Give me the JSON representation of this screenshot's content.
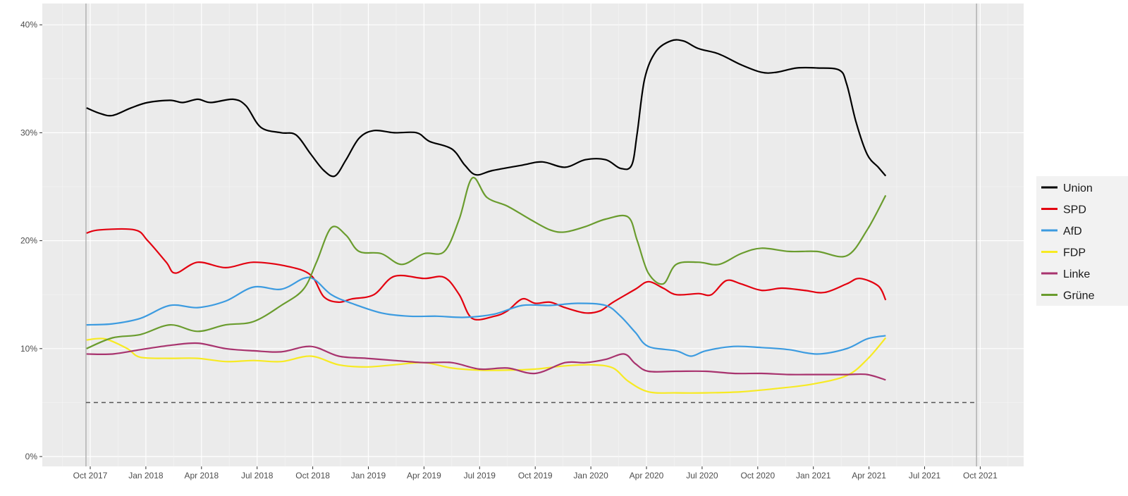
{
  "chart_data": {
    "type": "line",
    "title": "",
    "xlabel": "",
    "ylabel": "",
    "x_unit": "months since Oct 2017",
    "xlim": [
      -1.1,
      49.5
    ],
    "ylim": [
      0,
      40
    ],
    "y_ticks": [
      0,
      10,
      20,
      30,
      40
    ],
    "y_tick_labels": [
      "0%",
      "10%",
      "20%",
      "30%",
      "40%"
    ],
    "x_ticks": [
      0,
      3,
      6,
      9,
      12,
      15,
      18,
      21,
      24,
      27,
      30,
      33,
      36,
      39,
      42,
      45,
      48
    ],
    "x_tick_labels": [
      "Oct 2017",
      "Jan 2018",
      "Apr 2018",
      "Jul 2018",
      "Oct 2018",
      "Jan 2019",
      "Apr 2019",
      "Jul 2019",
      "Oct 2019",
      "Jan 2020",
      "Apr 2020",
      "Jul 2020",
      "Oct 2020",
      "Jan 2021",
      "Apr 2021",
      "Jul 2021",
      "Oct 2021"
    ],
    "grid": true,
    "election_lines": [
      -0.23,
      47.8
    ],
    "threshold_line": 5,
    "legend_position": "right",
    "series": [
      {
        "name": "Union",
        "color": "#000000",
        "points": [
          [
            -0.2,
            32.3
          ],
          [
            0.5,
            31.8
          ],
          [
            1.2,
            31.6
          ],
          [
            2.2,
            32.3
          ],
          [
            3.1,
            32.8
          ],
          [
            4.3,
            33
          ],
          [
            5,
            32.8
          ],
          [
            5.8,
            33.1
          ],
          [
            6.5,
            32.8
          ],
          [
            7.7,
            33.1
          ],
          [
            8.4,
            32.5
          ],
          [
            9.2,
            30.5
          ],
          [
            10.3,
            30
          ],
          [
            11.1,
            29.8
          ],
          [
            11.9,
            28
          ],
          [
            12.6,
            26.5
          ],
          [
            13.2,
            26
          ],
          [
            13.8,
            27.5
          ],
          [
            14.5,
            29.5
          ],
          [
            15.3,
            30.2
          ],
          [
            16.4,
            30
          ],
          [
            17.6,
            30
          ],
          [
            18.3,
            29.2
          ],
          [
            19.5,
            28.5
          ],
          [
            20.2,
            27
          ],
          [
            20.8,
            26.1
          ],
          [
            21.7,
            26.5
          ],
          [
            23.3,
            27
          ],
          [
            24.4,
            27.3
          ],
          [
            25.6,
            26.8
          ],
          [
            26.7,
            27.5
          ],
          [
            27.8,
            27.5
          ],
          [
            28.6,
            26.7
          ],
          [
            29.2,
            27
          ],
          [
            29.5,
            30
          ],
          [
            29.9,
            35
          ],
          [
            30.5,
            37.5
          ],
          [
            31.3,
            38.5
          ],
          [
            32,
            38.5
          ],
          [
            32.8,
            37.8
          ],
          [
            33.9,
            37.3
          ],
          [
            35.1,
            36.3
          ],
          [
            36.2,
            35.6
          ],
          [
            37,
            35.6
          ],
          [
            38.1,
            36
          ],
          [
            39.2,
            36
          ],
          [
            40.4,
            35.8
          ],
          [
            40.8,
            34.5
          ],
          [
            41.3,
            31
          ],
          [
            41.9,
            28
          ],
          [
            42.5,
            26.8
          ],
          [
            42.9,
            26
          ]
        ]
      },
      {
        "name": "SPD",
        "color": "#e3000f",
        "points": [
          [
            -0.2,
            20.7
          ],
          [
            0.5,
            21
          ],
          [
            2.4,
            21
          ],
          [
            3.1,
            20
          ],
          [
            4.1,
            18
          ],
          [
            4.6,
            17
          ],
          [
            5.8,
            18
          ],
          [
            7.3,
            17.5
          ],
          [
            8.8,
            18
          ],
          [
            10.7,
            17.6
          ],
          [
            11.9,
            16.8
          ],
          [
            12.6,
            14.8
          ],
          [
            13.4,
            14.3
          ],
          [
            14.1,
            14.6
          ],
          [
            15.3,
            15
          ],
          [
            16.4,
            16.7
          ],
          [
            18,
            16.5
          ],
          [
            19.1,
            16.6
          ],
          [
            19.9,
            15
          ],
          [
            20.6,
            12.8
          ],
          [
            21.8,
            13
          ],
          [
            22.5,
            13.5
          ],
          [
            23.3,
            14.6
          ],
          [
            24,
            14.2
          ],
          [
            24.8,
            14.3
          ],
          [
            25.6,
            13.8
          ],
          [
            26.7,
            13.3
          ],
          [
            27.5,
            13.5
          ],
          [
            28.2,
            14.3
          ],
          [
            29.4,
            15.5
          ],
          [
            30.1,
            16.2
          ],
          [
            30.9,
            15.6
          ],
          [
            31.6,
            15
          ],
          [
            32.8,
            15.1
          ],
          [
            33.5,
            15
          ],
          [
            34.3,
            16.3
          ],
          [
            35.1,
            16
          ],
          [
            36.2,
            15.4
          ],
          [
            37.3,
            15.6
          ],
          [
            38.5,
            15.4
          ],
          [
            39.6,
            15.2
          ],
          [
            40.8,
            16
          ],
          [
            41.5,
            16.5
          ],
          [
            42.5,
            15.8
          ],
          [
            42.9,
            14.5
          ]
        ]
      },
      {
        "name": "AfD",
        "color": "#3c9be0",
        "points": [
          [
            -0.2,
            12.2
          ],
          [
            1.2,
            12.3
          ],
          [
            2.7,
            12.8
          ],
          [
            4.3,
            14
          ],
          [
            5.8,
            13.8
          ],
          [
            7.3,
            14.4
          ],
          [
            8.8,
            15.7
          ],
          [
            10.3,
            15.5
          ],
          [
            11.5,
            16.5
          ],
          [
            12.1,
            16.4
          ],
          [
            13,
            15
          ],
          [
            14.1,
            14.2
          ],
          [
            15.7,
            13.3
          ],
          [
            17.2,
            13
          ],
          [
            18.7,
            13
          ],
          [
            20.2,
            12.9
          ],
          [
            21.8,
            13.2
          ],
          [
            23.3,
            14
          ],
          [
            24.8,
            14
          ],
          [
            26.3,
            14.2
          ],
          [
            27.8,
            14
          ],
          [
            28.6,
            13
          ],
          [
            29.4,
            11.5
          ],
          [
            30.1,
            10.2
          ],
          [
            31.6,
            9.8
          ],
          [
            32.4,
            9.3
          ],
          [
            33.2,
            9.8
          ],
          [
            34.7,
            10.2
          ],
          [
            36.2,
            10.1
          ],
          [
            37.7,
            9.9
          ],
          [
            39.2,
            9.5
          ],
          [
            40.8,
            10
          ],
          [
            41.9,
            10.9
          ],
          [
            42.9,
            11.2
          ]
        ]
      },
      {
        "name": "FDP",
        "color": "#f7ea23",
        "points": [
          [
            -0.2,
            10.8
          ],
          [
            0.8,
            10.9
          ],
          [
            2,
            10
          ],
          [
            2.7,
            9.2
          ],
          [
            4.3,
            9.1
          ],
          [
            5.8,
            9.1
          ],
          [
            7.3,
            8.8
          ],
          [
            8.8,
            8.9
          ],
          [
            10.3,
            8.8
          ],
          [
            11.9,
            9.3
          ],
          [
            13.4,
            8.5
          ],
          [
            14.9,
            8.3
          ],
          [
            16.4,
            8.5
          ],
          [
            18,
            8.7
          ],
          [
            19.5,
            8.2
          ],
          [
            21,
            8
          ],
          [
            22.5,
            8
          ],
          [
            24,
            8.1
          ],
          [
            25.6,
            8.4
          ],
          [
            27.1,
            8.5
          ],
          [
            28.2,
            8.2
          ],
          [
            29,
            7
          ],
          [
            30.1,
            6
          ],
          [
            31.6,
            5.9
          ],
          [
            33.2,
            5.9
          ],
          [
            35.1,
            6
          ],
          [
            37,
            6.3
          ],
          [
            38.9,
            6.7
          ],
          [
            40.8,
            7.5
          ],
          [
            41.9,
            9
          ],
          [
            42.9,
            11
          ]
        ]
      },
      {
        "name": "Linke",
        "color": "#a8336e",
        "points": [
          [
            -0.2,
            9.5
          ],
          [
            1.2,
            9.5
          ],
          [
            2.7,
            9.9
          ],
          [
            4.3,
            10.3
          ],
          [
            5.8,
            10.5
          ],
          [
            7.3,
            10
          ],
          [
            8.8,
            9.8
          ],
          [
            10.3,
            9.7
          ],
          [
            11.9,
            10.2
          ],
          [
            13.4,
            9.3
          ],
          [
            14.9,
            9.1
          ],
          [
            16.4,
            8.9
          ],
          [
            18,
            8.7
          ],
          [
            19.5,
            8.7
          ],
          [
            21,
            8.1
          ],
          [
            22.5,
            8.2
          ],
          [
            24,
            7.7
          ],
          [
            25.6,
            8.7
          ],
          [
            26.7,
            8.7
          ],
          [
            27.8,
            9
          ],
          [
            28.8,
            9.5
          ],
          [
            29.4,
            8.6
          ],
          [
            30.1,
            7.9
          ],
          [
            31.6,
            7.9
          ],
          [
            33.2,
            7.9
          ],
          [
            34.7,
            7.7
          ],
          [
            36.2,
            7.7
          ],
          [
            37.7,
            7.6
          ],
          [
            39.2,
            7.6
          ],
          [
            40.8,
            7.6
          ],
          [
            41.9,
            7.6
          ],
          [
            42.9,
            7.1
          ]
        ]
      },
      {
        "name": "Grüne",
        "color": "#6a9c2e",
        "points": [
          [
            -0.2,
            10
          ],
          [
            1.2,
            11
          ],
          [
            2.7,
            11.3
          ],
          [
            4.3,
            12.2
          ],
          [
            5.8,
            11.6
          ],
          [
            7.3,
            12.2
          ],
          [
            8.8,
            12.5
          ],
          [
            10.3,
            14
          ],
          [
            11.5,
            15.5
          ],
          [
            12.2,
            18
          ],
          [
            13,
            21.2
          ],
          [
            13.8,
            20.5
          ],
          [
            14.5,
            19
          ],
          [
            15.7,
            18.8
          ],
          [
            16.8,
            17.8
          ],
          [
            18,
            18.8
          ],
          [
            19.1,
            19
          ],
          [
            19.9,
            22
          ],
          [
            20.6,
            25.8
          ],
          [
            21.4,
            24
          ],
          [
            22.5,
            23.2
          ],
          [
            23.7,
            22
          ],
          [
            24.8,
            21
          ],
          [
            25.6,
            20.8
          ],
          [
            26.7,
            21.3
          ],
          [
            27.8,
            22
          ],
          [
            29,
            22.2
          ],
          [
            29.5,
            20
          ],
          [
            30.1,
            17
          ],
          [
            30.9,
            16
          ],
          [
            31.6,
            17.8
          ],
          [
            32.8,
            18
          ],
          [
            33.9,
            17.8
          ],
          [
            35.1,
            18.8
          ],
          [
            36.2,
            19.3
          ],
          [
            37.7,
            19
          ],
          [
            39.2,
            19
          ],
          [
            40.8,
            18.6
          ],
          [
            41.9,
            21
          ],
          [
            42.9,
            24.2
          ]
        ]
      }
    ]
  }
}
